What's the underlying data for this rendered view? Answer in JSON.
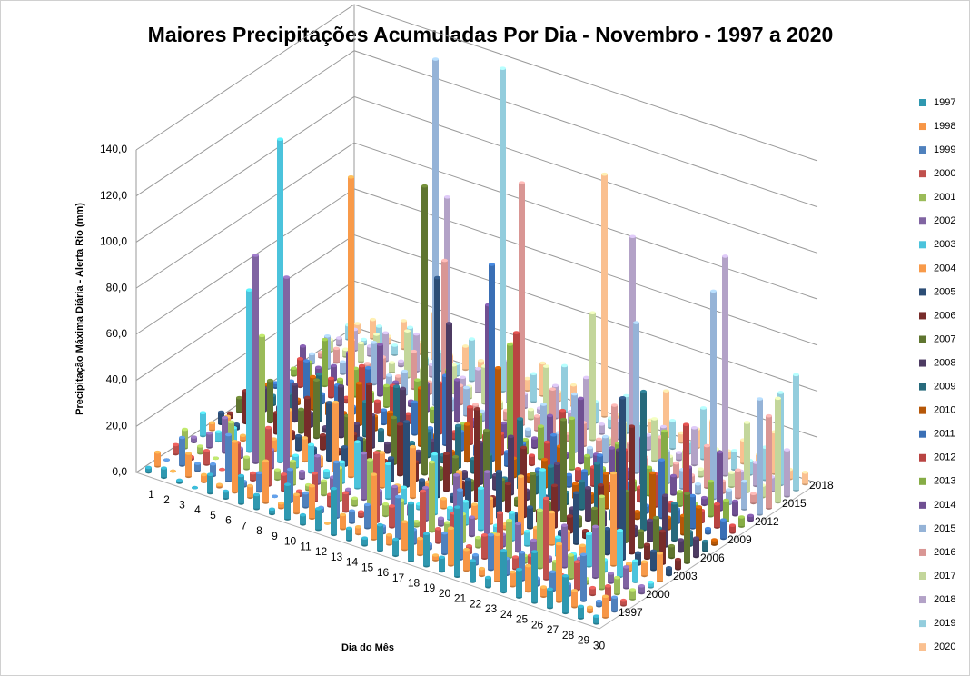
{
  "chart_data": {
    "type": "bar3d",
    "title": "Maiores Precipitações Acumuladas Por Dia - Novembro - 1997 a 2020",
    "x_label": "Dia do Mês",
    "y_label": "Precipitação Máxima Diária - Alerta Rio (mm)",
    "categories": [
      "1",
      "2",
      "3",
      "4",
      "5",
      "6",
      "7",
      "8",
      "9",
      "10",
      "11",
      "12",
      "13",
      "14",
      "15",
      "16",
      "17",
      "18",
      "19",
      "20",
      "21",
      "22",
      "23",
      "24",
      "25",
      "26",
      "27",
      "28",
      "29",
      "30"
    ],
    "ylim": [
      0,
      140
    ],
    "yticks": [
      {
        "value": 0,
        "label": "0,0"
      },
      {
        "value": 20,
        "label": "20,0"
      },
      {
        "value": 40,
        "label": "40,0"
      },
      {
        "value": 60,
        "label": "60,0"
      },
      {
        "value": 80,
        "label": "80,0"
      },
      {
        "value": 100,
        "label": "100,0"
      },
      {
        "value": 120,
        "label": "120,0"
      },
      {
        "value": 140,
        "label": "140,0"
      }
    ],
    "grid": true,
    "legend": "right",
    "series": [
      {
        "name": "1997",
        "color": "#2f98b0",
        "values": [
          2,
          4,
          1,
          0,
          8,
          3,
          12,
          6,
          2,
          15,
          4,
          9,
          20,
          5,
          3,
          11,
          7,
          25,
          14,
          6,
          30,
          9,
          4,
          18,
          12,
          22,
          8,
          16,
          5,
          3
        ]
      },
      {
        "name": "1998",
        "color": "#f79646",
        "values": [
          6,
          0,
          10,
          3,
          1,
          22,
          5,
          18,
          2,
          8,
          14,
          0,
          6,
          3,
          28,
          4,
          12,
          7,
          2,
          16,
          9,
          3,
          20,
          6,
          11,
          4,
          25,
          7,
          2,
          9
        ]
      },
      {
        "name": "1999",
        "color": "#4f81bd",
        "values": [
          0,
          12,
          3,
          5,
          20,
          2,
          8,
          0,
          14,
          6,
          2,
          24,
          5,
          10,
          3,
          18,
          6,
          2,
          9,
          30,
          4,
          15,
          7,
          12,
          3,
          8,
          5,
          20,
          2,
          6
        ]
      },
      {
        "name": "2000",
        "color": "#c0504d",
        "values": [
          4,
          1,
          6,
          0,
          14,
          3,
          25,
          7,
          2,
          12,
          5,
          8,
          2,
          30,
          9,
          4,
          20,
          6,
          15,
          3,
          10,
          22,
          5,
          8,
          35,
          4,
          12,
          3,
          6,
          2
        ]
      },
      {
        "name": "2001",
        "color": "#9bbb59",
        "values": [
          8,
          3,
          0,
          18,
          5,
          60,
          4,
          10,
          2,
          6,
          14,
          3,
          22,
          5,
          9,
          2,
          30,
          6,
          12,
          4,
          8,
          16,
          3,
          25,
          5,
          10,
          2,
          40,
          7,
          4
        ]
      },
      {
        "name": "2002",
        "color": "#8064a2",
        "values": [
          2,
          6,
          15,
          4,
          90,
          8,
          85,
          3,
          12,
          5,
          2,
          20,
          6,
          10,
          4,
          14,
          3,
          24,
          8,
          30,
          5,
          12,
          7,
          2,
          18,
          6,
          22,
          4,
          9,
          3
        ]
      },
      {
        "name": "2003",
        "color": "#4bc3dc",
        "values": [
          10,
          4,
          8,
          70,
          6,
          140,
          5,
          12,
          3,
          9,
          20,
          4,
          15,
          7,
          2,
          26,
          5,
          10,
          18,
          4,
          12,
          6,
          35,
          8,
          3,
          14,
          5,
          20,
          9,
          2
        ]
      },
      {
        "name": "2004",
        "color": "#f89a4a",
        "values": [
          3,
          8,
          2,
          12,
          5,
          20,
          10,
          4,
          30,
          130,
          6,
          15,
          3,
          22,
          9,
          4,
          18,
          6,
          11,
          2,
          25,
          5,
          14,
          8,
          4,
          10,
          40,
          3,
          6,
          12
        ]
      },
      {
        "name": "2005",
        "color": "#2c4d75",
        "values": [
          5,
          2,
          12,
          4,
          18,
          6,
          3,
          25,
          8,
          14,
          4,
          10,
          28,
          5,
          95,
          3,
          12,
          6,
          20,
          4,
          9,
          16,
          3,
          22,
          6,
          11,
          70,
          5,
          8,
          3
        ]
      },
      {
        "name": "2006",
        "color": "#772c2a",
        "values": [
          2,
          14,
          5,
          9,
          3,
          20,
          6,
          2,
          11,
          35,
          4,
          22,
          8,
          3,
          16,
          6,
          40,
          4,
          12,
          30,
          5,
          18,
          7,
          3,
          25,
          8,
          55,
          6,
          14,
          4
        ]
      },
      {
        "name": "2007",
        "color": "#5f7530",
        "values": [
          6,
          3,
          18,
          2,
          10,
          25,
          4,
          14,
          6,
          3,
          20,
          8,
          125,
          5,
          12,
          4,
          28,
          9,
          3,
          16,
          6,
          44,
          4,
          10,
          3,
          22,
          7,
          15,
          5,
          30
        ]
      },
      {
        "name": "2008",
        "color": "#4d3b62",
        "values": [
          3,
          10,
          4,
          16,
          6,
          2,
          22,
          8,
          14,
          4,
          30,
          5,
          12,
          65,
          3,
          18,
          6,
          25,
          4,
          10,
          20,
          3,
          14,
          6,
          35,
          4,
          9,
          22,
          5,
          8
        ]
      },
      {
        "name": "2009",
        "color": "#276a7c",
        "values": [
          12,
          4,
          7,
          2,
          20,
          9,
          3,
          15,
          5,
          26,
          4,
          11,
          3,
          18,
          6,
          10,
          2,
          30,
          8,
          14,
          5,
          12,
          22,
          4,
          9,
          60,
          3,
          16,
          6,
          4
        ]
      },
      {
        "name": "2010",
        "color": "#b65708",
        "values": [
          4,
          9,
          2,
          14,
          5,
          3,
          18,
          6,
          10,
          4,
          25,
          7,
          2,
          16,
          5,
          45,
          8,
          3,
          12,
          20,
          6,
          4,
          15,
          9,
          3,
          22,
          5,
          8,
          14,
          2
        ]
      },
      {
        "name": "2011",
        "color": "#3a6fb5",
        "values": [
          2,
          5,
          16,
          4,
          10,
          3,
          22,
          6,
          2,
          14,
          5,
          30,
          8,
          4,
          85,
          6,
          12,
          3,
          20,
          5,
          9,
          18,
          4,
          11,
          3,
          25,
          6,
          14,
          2,
          8
        ]
      },
      {
        "name": "2012",
        "color": "#b94442",
        "values": [
          6,
          12,
          3,
          8,
          2,
          18,
          5,
          14,
          4,
          10,
          22,
          3,
          16,
          6,
          9,
          55,
          4,
          12,
          28,
          5,
          8,
          3,
          20,
          6,
          14,
          4,
          40,
          5,
          10,
          3
        ]
      },
      {
        "name": "2013",
        "color": "#86ac45",
        "values": [
          3,
          8,
          20,
          5,
          12,
          4,
          9,
          2,
          16,
          6,
          25,
          4,
          10,
          3,
          45,
          6,
          14,
          2,
          22,
          8,
          5,
          18,
          4,
          12,
          30,
          6,
          3,
          15,
          9,
          4
        ]
      },
      {
        "name": "2014",
        "color": "#6f4f92",
        "values": [
          10,
          3,
          6,
          14,
          4,
          22,
          8,
          2,
          12,
          5,
          18,
          3,
          55,
          6,
          9,
          4,
          16,
          2,
          28,
          6,
          11,
          4,
          20,
          5,
          8,
          14,
          3,
          25,
          6,
          2
        ]
      },
      {
        "name": "2015",
        "color": "#95b3d7",
        "values": [
          4,
          14,
          5,
          2,
          18,
          6,
          10,
          3,
          150,
          5,
          12,
          4,
          20,
          8,
          3,
          16,
          6,
          25,
          4,
          11,
          5,
          65,
          3,
          14,
          8,
          4,
          90,
          6,
          12,
          50
        ]
      },
      {
        "name": "2016",
        "color": "#d99694",
        "values": [
          2,
          6,
          12,
          4,
          9,
          3,
          16,
          5,
          60,
          8,
          2,
          14,
          4,
          105,
          6,
          20,
          3,
          10,
          5,
          22,
          8,
          4,
          15,
          6,
          3,
          18,
          5,
          12,
          4,
          40
        ]
      },
      {
        "name": "2017",
        "color": "#c3d69b",
        "values": [
          5,
          3,
          8,
          14,
          4,
          20,
          6,
          2,
          12,
          5,
          16,
          3,
          10,
          4,
          25,
          6,
          8,
          55,
          3,
          12,
          5,
          18,
          4,
          9,
          3,
          14,
          6,
          30,
          5,
          45
        ]
      },
      {
        "name": "2018",
        "color": "#b3a2c7",
        "values": [
          3,
          9,
          4,
          12,
          2,
          16,
          5,
          80,
          4,
          10,
          3,
          18,
          6,
          2,
          14,
          5,
          22,
          4,
          8,
          90,
          6,
          12,
          3,
          16,
          5,
          95,
          4,
          10,
          6,
          20
        ]
      },
      {
        "name": "2019",
        "color": "#93cddd",
        "values": [
          6,
          2,
          10,
          4,
          14,
          3,
          8,
          5,
          18,
          4,
          140,
          6,
          12,
          3,
          20,
          5,
          9,
          4,
          16,
          6,
          3,
          12,
          5,
          22,
          4,
          8,
          6,
          14,
          40,
          50
        ]
      },
      {
        "name": "2020",
        "color": "#fac090",
        "values": [
          4,
          8,
          3,
          12,
          5,
          20,
          4,
          10,
          6,
          3,
          18,
          5,
          14,
          4,
          9,
          6,
          105,
          3,
          12,
          5,
          20,
          4,
          8,
          14,
          3,
          10,
          6,
          18,
          4,
          5
        ]
      }
    ]
  }
}
